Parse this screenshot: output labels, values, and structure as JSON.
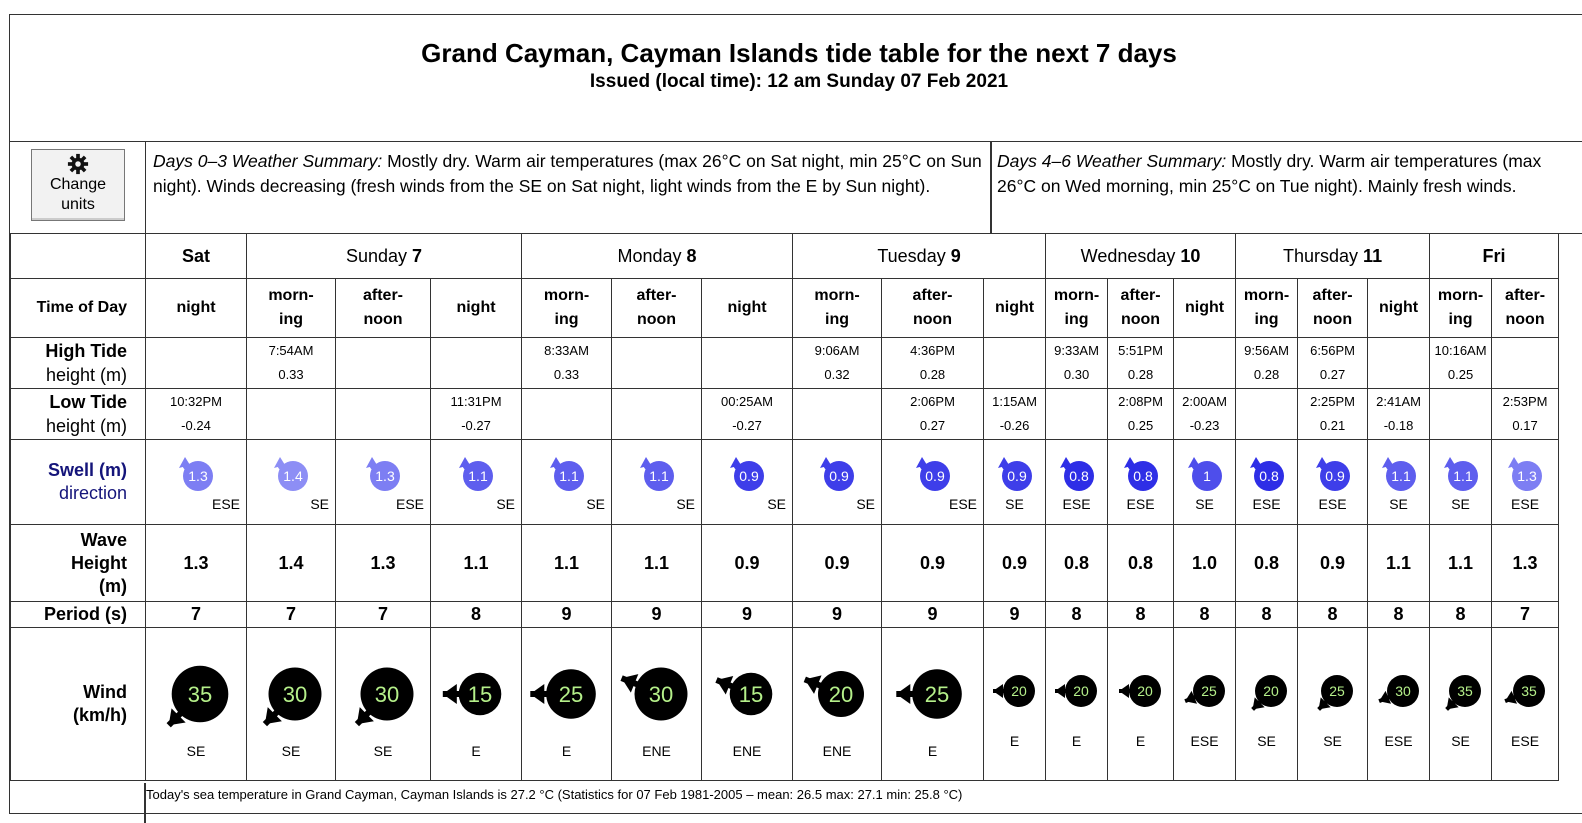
{
  "title": "Grand Cayman, Cayman Islands tide table for the next 7 days",
  "issued": "Issued (local time): 12 am Sunday 07 Feb 2021",
  "change_units_label": "Change units",
  "summary1": {
    "heading": "Days 0–3 Weather Summary:",
    "text": " Mostly dry. Warm air temperatures (max 26°C on Sat night, min 25°C on Sun night). Winds decreasing (fresh winds from the SE on Sat night, light winds from the E by Sun night)."
  },
  "summary2": {
    "heading": "Days 4–6 Weather Summary:",
    "text": " Mostly dry. Warm air temperatures (max 26°C on Wed morning, min 25°C on Tue night). Mainly fresh winds."
  },
  "row_labels": {
    "time_of_day": "Time of Day",
    "high_tide": "High Tide",
    "high_tide_sub": "height (m)",
    "low_tide": "Low Tide",
    "low_tide_sub": "height (m)",
    "swell": "Swell (m)",
    "swell_sub": "direction",
    "wave_height": "Wave Height (m)",
    "period": "Period (s)",
    "wind": "Wind (km/h)"
  },
  "days": [
    {
      "name": "Sat",
      "num": "",
      "span": 1
    },
    {
      "name": "Sunday ",
      "num": "7",
      "span": 3
    },
    {
      "name": "Monday ",
      "num": "8",
      "span": 3
    },
    {
      "name": "Tuesday ",
      "num": "9",
      "span": 3
    },
    {
      "name": "Wednesday ",
      "num": "10",
      "span": 3
    },
    {
      "name": "Thursday ",
      "num": "11",
      "span": 3
    },
    {
      "name": "Fri",
      "num": "",
      "span": 2
    }
  ],
  "columns": [
    {
      "tod": "night",
      "high_time": "",
      "high_h": "",
      "low_time": "10:32PM",
      "low_h": "-0.24",
      "swell": "1.3",
      "swell_dir": "ESE",
      "wave": "1.3",
      "period": "7",
      "wind": "35",
      "wind_dir": "SE"
    },
    {
      "tod": "morn- ing",
      "high_time": "7:54AM",
      "high_h": "0.33",
      "low_time": "",
      "low_h": "",
      "swell": "1.4",
      "swell_dir": "SE",
      "wave": "1.4",
      "period": "7",
      "wind": "30",
      "wind_dir": "SE"
    },
    {
      "tod": "after- noon",
      "high_time": "",
      "high_h": "",
      "low_time": "",
      "low_h": "",
      "swell": "1.3",
      "swell_dir": "ESE",
      "wave": "1.3",
      "period": "7",
      "wind": "30",
      "wind_dir": "SE"
    },
    {
      "tod": "night",
      "high_time": "",
      "high_h": "",
      "low_time": "11:31PM",
      "low_h": "-0.27",
      "swell": "1.1",
      "swell_dir": "SE",
      "wave": "1.1",
      "period": "8",
      "wind": "15",
      "wind_dir": "E"
    },
    {
      "tod": "morn- ing",
      "high_time": "8:33AM",
      "high_h": "0.33",
      "low_time": "",
      "low_h": "",
      "swell": "1.1",
      "swell_dir": "SE",
      "wave": "1.1",
      "period": "9",
      "wind": "25",
      "wind_dir": "E"
    },
    {
      "tod": "after- noon",
      "high_time": "",
      "high_h": "",
      "low_time": "",
      "low_h": "",
      "swell": "1.1",
      "swell_dir": "SE",
      "wave": "1.1",
      "period": "9",
      "wind": "30",
      "wind_dir": "ENE"
    },
    {
      "tod": "night",
      "high_time": "",
      "high_h": "",
      "low_time": "00:25AM",
      "low_h": "-0.27",
      "swell": "0.9",
      "swell_dir": "SE",
      "wave": "0.9",
      "period": "9",
      "wind": "15",
      "wind_dir": "ENE"
    },
    {
      "tod": "morn- ing",
      "high_time": "9:06AM",
      "high_h": "0.32",
      "low_time": "",
      "low_h": "",
      "swell": "0.9",
      "swell_dir": "SE",
      "wave": "0.9",
      "period": "9",
      "wind": "20",
      "wind_dir": "ENE"
    },
    {
      "tod": "after- noon",
      "high_time": "4:36PM",
      "high_h": "0.28",
      "low_time": "2:06PM",
      "low_h": "0.27",
      "swell": "0.9",
      "swell_dir": "ESE",
      "wave": "0.9",
      "period": "9",
      "wind": "25",
      "wind_dir": "E"
    },
    {
      "tod": "night",
      "high_time": "",
      "high_h": "",
      "low_time": "1:15AM",
      "low_h": "-0.26",
      "swell": "0.9",
      "swell_dir": "SE",
      "wave": "0.9",
      "period": "9",
      "wind": "20",
      "wind_dir": "E"
    },
    {
      "tod": "morn- ing",
      "high_time": "9:33AM",
      "high_h": "0.30",
      "low_time": "",
      "low_h": "",
      "swell": "0.8",
      "swell_dir": "ESE",
      "wave": "0.8",
      "period": "8",
      "wind": "20",
      "wind_dir": "E"
    },
    {
      "tod": "after- noon",
      "high_time": "5:51PM",
      "high_h": "0.28",
      "low_time": "2:08PM",
      "low_h": "0.25",
      "swell": "0.8",
      "swell_dir": "ESE",
      "wave": "0.8",
      "period": "8",
      "wind": "20",
      "wind_dir": "E"
    },
    {
      "tod": "night",
      "high_time": "",
      "high_h": "",
      "low_time": "2:00AM",
      "low_h": "-0.23",
      "swell": "1",
      "swell_dir": "SE",
      "wave": "1.0",
      "period": "8",
      "wind": "25",
      "wind_dir": "ESE"
    },
    {
      "tod": "morn- ing",
      "high_time": "9:56AM",
      "high_h": "0.28",
      "low_time": "",
      "low_h": "",
      "swell": "0.8",
      "swell_dir": "ESE",
      "wave": "0.8",
      "period": "8",
      "wind": "20",
      "wind_dir": "SE"
    },
    {
      "tod": "after- noon",
      "high_time": "6:56PM",
      "high_h": "0.27",
      "low_time": "2:25PM",
      "low_h": "0.21",
      "swell": "0.9",
      "swell_dir": "ESE",
      "wave": "0.9",
      "period": "8",
      "wind": "25",
      "wind_dir": "SE"
    },
    {
      "tod": "night",
      "high_time": "",
      "high_h": "",
      "low_time": "2:41AM",
      "low_h": "-0.18",
      "swell": "1.1",
      "swell_dir": "SE",
      "wave": "1.1",
      "period": "8",
      "wind": "30",
      "wind_dir": "ESE"
    },
    {
      "tod": "morn- ing",
      "high_time": "10:16AM",
      "high_h": "0.25",
      "low_time": "",
      "low_h": "",
      "swell": "1.1",
      "swell_dir": "SE",
      "wave": "1.1",
      "period": "8",
      "wind": "35",
      "wind_dir": "SE"
    },
    {
      "tod": "after- noon",
      "high_time": "",
      "high_h": "",
      "low_time": "2:53PM",
      "low_h": "0.17",
      "swell": "1.3",
      "swell_dir": "ESE",
      "wave": "1.3",
      "period": "7",
      "wind": "35",
      "wind_dir": "ESE"
    }
  ],
  "footer": "Today's sea temperature in Grand Cayman, Cayman Islands is 27.2 °C (Statistics for 07 Feb 1981-2005 – mean: 26.5 max: 27.1 min: 25.8 °C)",
  "colors": {
    "swell_light": "#8d8ef5",
    "swell_dark": "#2e2ee6",
    "wind_text": "#b5f08a",
    "label_blue": "#14147a"
  },
  "icons": {
    "change_units": "gear-icon",
    "swell": "swell-arrow-icon",
    "wind": "wind-arrow-icon"
  }
}
